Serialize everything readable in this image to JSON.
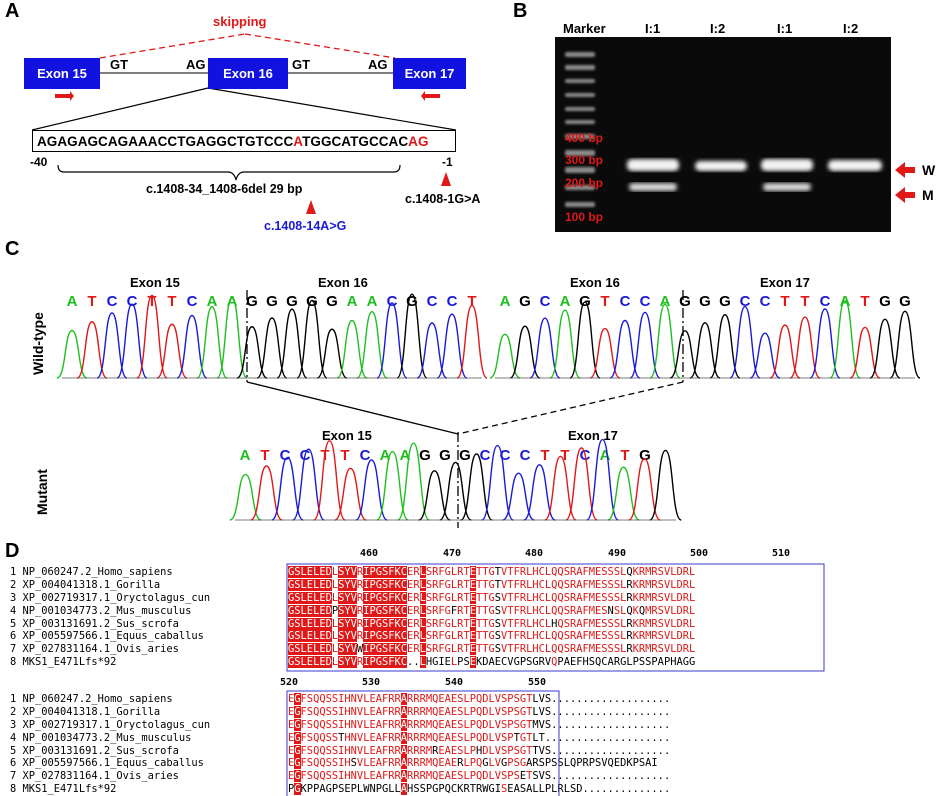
{
  "panels": {
    "a": "A",
    "b": "B",
    "c": "C",
    "d": "D"
  },
  "panel_a": {
    "skipping": "skipping",
    "exons": [
      "Exon 15",
      "Exon 16",
      "Exon 17"
    ],
    "splice": [
      "GT",
      "AG",
      "GT",
      "AG"
    ],
    "seq_pre": "AGAGAGCAGAAACCTGAGGCTGTCCC",
    "seq_mut1": "A",
    "seq_mid": "TGGCATGCCAC",
    "seq_mut2": "AG",
    "pos_left": "-40",
    "pos_right": "-1",
    "deletion": "c.1408-34_1408-6del 29 bp",
    "variant1": "c.1408-14A>G",
    "variant2": "c.1408-1G>A"
  },
  "panel_b": {
    "lanes": [
      "Marker",
      "I:1",
      "I:2",
      "I:1",
      "I:2"
    ],
    "sizes": [
      "400 bp",
      "300 bp",
      "200 bp",
      "100 bp"
    ],
    "bands": [
      "W",
      "M"
    ]
  },
  "panel_c": {
    "wt_label": "Wild-type",
    "mut_label": "Mutant",
    "wt_left_exons": [
      "Exon 15",
      "Exon 16"
    ],
    "wt_right_exons": [
      "Exon 16",
      "Exon 17"
    ],
    "mut_exons": [
      "Exon 15",
      "Exon 17"
    ],
    "wt_left_seq": [
      "A",
      "T",
      "C",
      "C",
      "T",
      "T",
      "C",
      "A",
      "A",
      "G",
      "G",
      "G",
      "G",
      "G",
      "A",
      "A",
      "C",
      "G",
      "C",
      "C",
      "T"
    ],
    "wt_right_seq": [
      "A",
      "G",
      "C",
      "A",
      "G",
      "T",
      "C",
      "C",
      "A",
      "G",
      "G",
      "G",
      "C",
      "C",
      "T",
      "T",
      "C",
      "A",
      "T",
      "G",
      "G"
    ],
    "mut_seq": [
      "A",
      "T",
      "C",
      "C",
      "T",
      "T",
      "C",
      "A",
      "A",
      "G",
      "G",
      "G",
      "C",
      "C",
      "C",
      "T",
      "T",
      "C",
      "A",
      "T",
      "G"
    ]
  },
  "panel_d": {
    "ticks1": [
      "460",
      "470",
      "480",
      "490",
      "500",
      "510"
    ],
    "ticks2": [
      "520",
      "530",
      "540",
      "550"
    ],
    "names": [
      "1 NP_060247.2_Homo_sapiens",
      "2 XP_004041318.1_Gorilla",
      "3 XP_002719317.1_Oryctolagus_cun",
      "4 NP_001034773.2_Mus_musculus",
      "5 XP_003131691.2_Sus_scrofa",
      "6 XP_005597566.1_Equus_caballus",
      "7 XP_027831164.1_Ovis_aries",
      "8 MKS1_E471Lfs*92"
    ],
    "block1": [
      "GSLELEDLSYVRIPGSFKCERLSRFGLRTETTGTVTFRLHCLQQSRAFMESSSLQKRMRSVLDRL",
      "GSLELEDLSYVRIPGSFKCERLSRFGLRTETTGTVTFRLHCLQQSRAFMESSSLRKRMRSVLDRL",
      "GSLELEDLSYVRIPGSFKCERLSRFGLRTETTGSVTFRLHCLQQSRAFMESSSLRKRMRSVLDRL",
      "GSLELEDPSYVRIPGSFKCERLSRFGFRTETTGSVTFRLHCLQQSRAFMESNSLQKQMRSVLDRL",
      "GSLELEDLSYVRIPGSFKCERLSRFGLRTETTGSVTFRLHCLHQSRAFMESSSLRKRMRSVLDRL",
      "GSLELEDLSYVRIPGSFKCERLSRFGLRTETTGSVTFRLHCLQQSRAFMESSSLRKRMRSVLDRL",
      "GSLELEDLSYVWIPGSFKCERLSRFGLRTETTGSVTFRLHCLQQSRAFMESSSLRKRMRSVLDRL",
      "GSLELEDLSYVRIPGSFKC..LHGIELPSEKDAECVGPSGRVQPAEFHSQCARGLPSSPAPHAGG"
    ],
    "block2": [
      "EGFSQQSSIHNVLEAFRRARRRMQEAESLPQDLVSPSGTLVS...................",
      "EGFSQQSSIHNVLEAFRRARRRMQEAESLPQDLVSPSGTLVS...................",
      "EGFSQQSSIHNVLEAFRRARRRMQEAESLPQDLVSPSGTMVS...................",
      "EGFSQQSSTHNVLEAFRRARRRMQEAESLPQDLVSPTGTLT....................",
      "EGFSQQSSIHNVLEAFRRARRRMREAESLPHDLVSPSGTTVS...................",
      "EGFSQQSSIHSVLEAFRRARRRMQEAERLPQGLVGPSGARSPSSLQPRPSVQEDKPSAI",
      "EGFSQQSSIHNVLEAFRRARRRMQEAESLPQDLVSPSETSVS...................",
      "PGKPPAGPSEPLWNPGLLAHSSPGPQCKRTRWGISEASALLPLRLSD.............."
    ]
  }
}
